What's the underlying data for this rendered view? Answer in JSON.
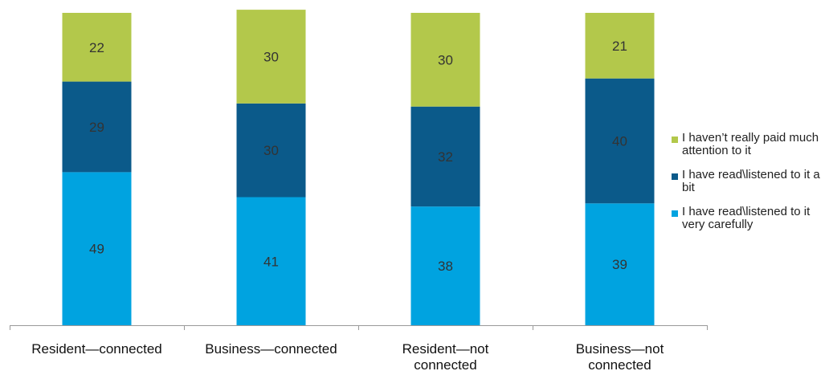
{
  "chart_data": {
    "type": "bar",
    "stacked": true,
    "percent": true,
    "categories": [
      "Resident—connected",
      "Business—connected",
      "Resident—not connected",
      "Business—not connected"
    ],
    "series": [
      {
        "name": "I have read\\listened to it very carefully",
        "values": [
          49,
          41,
          38,
          39
        ],
        "color": "#00a3e0"
      },
      {
        "name": "I have read\\listened to it a bit",
        "values": [
          29,
          30,
          32,
          40
        ],
        "color": "#0b5a8a"
      },
      {
        "name": "I haven’t really paid much attention to it",
        "values": [
          22,
          30,
          30,
          21
        ],
        "color": "#b3c84b"
      }
    ],
    "legend_order": [
      2,
      1,
      0
    ],
    "legend_position": "right",
    "title": "",
    "xlabel": "",
    "ylabel": "",
    "ylim": [
      0,
      100
    ],
    "grid": false
  }
}
